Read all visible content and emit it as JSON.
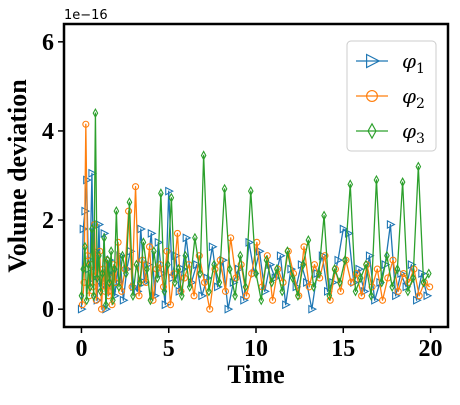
{
  "chart_data": {
    "type": "line",
    "title": "",
    "xlabel": "Time",
    "ylabel": "Volume deviation",
    "xlim": [
      -1,
      21
    ],
    "ylim": [
      -0.4,
      6.4
    ],
    "y_scale_label": "1e−16",
    "y_multiplier": 1e-16,
    "x_ticks": [
      0,
      5,
      10,
      15,
      20
    ],
    "x_tick_labels": [
      "0",
      "5",
      "10",
      "15",
      "20"
    ],
    "y_ticks": [
      0,
      2,
      4,
      6
    ],
    "y_tick_labels": [
      "0",
      "2",
      "4",
      "6"
    ],
    "grid": false,
    "legend_position": "top-right",
    "series": [
      {
        "name": "φ₁",
        "sub_base": "φ",
        "sub_index": "1",
        "color": "#1f77b4",
        "marker": "triangle-right",
        "x": [
          0.0,
          0.1,
          0.2,
          0.3,
          0.4,
          0.5,
          0.6,
          0.7,
          0.8,
          0.9,
          1.0,
          1.1,
          1.2,
          1.3,
          1.4,
          1.5,
          1.6,
          1.7,
          1.8,
          1.9,
          2.0,
          2.2,
          2.4,
          2.6,
          2.8,
          3.0,
          3.2,
          3.4,
          3.6,
          3.8,
          4.0,
          4.2,
          4.4,
          4.6,
          4.8,
          5.0,
          5.2,
          5.4,
          5.6,
          5.8,
          6.0,
          6.3,
          6.6,
          6.9,
          7.2,
          7.5,
          7.8,
          8.1,
          8.4,
          8.7,
          9.0,
          9.3,
          9.6,
          9.9,
          10.2,
          10.5,
          10.8,
          11.1,
          11.4,
          11.7,
          12.0,
          12.3,
          12.6,
          12.9,
          13.2,
          13.5,
          13.8,
          14.1,
          14.4,
          14.7,
          15.0,
          15.3,
          15.6,
          15.9,
          16.2,
          16.5,
          16.8,
          17.1,
          17.4,
          17.7,
          18.0,
          18.3,
          18.6,
          18.9,
          19.2,
          19.5,
          19.8
        ],
        "values": [
          0.0,
          1.8,
          2.2,
          2.9,
          0.9,
          1.1,
          3.05,
          0.7,
          1.3,
          0.2,
          1.9,
          0.5,
          0.6,
          1.7,
          0.0,
          0.8,
          1.1,
          0.4,
          0.9,
          0.3,
          0.6,
          1.2,
          0.2,
          0.9,
          1.3,
          0.5,
          0.4,
          1.8,
          0.6,
          1.0,
          1.7,
          0.3,
          1.5,
          0.8,
          0.1,
          2.65,
          0.7,
          1.2,
          0.4,
          0.9,
          1.6,
          0.6,
          1.0,
          0.3,
          0.7,
          1.4,
          0.5,
          1.1,
          0.0,
          0.6,
          0.9,
          0.2,
          1.5,
          0.8,
          1.3,
          0.4,
          1.0,
          0.7,
          1.2,
          0.1,
          0.9,
          0.5,
          1.0,
          0.6,
          0.0,
          0.8,
          1.2,
          0.4,
          0.6,
          1.1,
          1.8,
          1.7,
          0.6,
          0.9,
          0.4,
          1.2,
          0.2,
          0.6,
          1.0,
          1.9,
          0.3,
          0.8,
          0.5,
          1.0,
          0.2,
          0.8,
          0.3
        ]
      },
      {
        "name": "φ₂",
        "sub_base": "φ",
        "sub_index": "2",
        "color": "#ff7f0e",
        "marker": "circle",
        "x": [
          0.05,
          0.15,
          0.25,
          0.35,
          0.45,
          0.55,
          0.65,
          0.75,
          0.85,
          0.95,
          1.05,
          1.15,
          1.25,
          1.35,
          1.45,
          1.55,
          1.65,
          1.75,
          1.85,
          1.95,
          2.1,
          2.3,
          2.5,
          2.7,
          2.9,
          3.1,
          3.3,
          3.5,
          3.7,
          3.9,
          4.1,
          4.3,
          4.5,
          4.7,
          4.9,
          5.1,
          5.3,
          5.5,
          5.7,
          5.9,
          6.15,
          6.45,
          6.75,
          7.05,
          7.35,
          7.65,
          7.95,
          8.25,
          8.55,
          8.85,
          9.15,
          9.45,
          9.75,
          10.05,
          10.35,
          10.65,
          10.95,
          11.25,
          11.55,
          11.85,
          12.15,
          12.45,
          12.75,
          13.05,
          13.35,
          13.65,
          13.95,
          14.25,
          14.55,
          14.85,
          15.15,
          15.45,
          15.75,
          16.05,
          16.35,
          16.65,
          16.95,
          17.25,
          17.55,
          17.85,
          18.15,
          18.45,
          18.75,
          19.05,
          19.35,
          19.65,
          19.95
        ],
        "values": [
          0.1,
          0.6,
          4.15,
          1.2,
          0.3,
          1.0,
          0.5,
          1.9,
          0.2,
          0.8,
          1.3,
          0.0,
          0.9,
          0.4,
          1.1,
          0.3,
          0.7,
          0.1,
          1.0,
          0.6,
          1.5,
          0.4,
          0.9,
          2.2,
          0.5,
          2.75,
          0.3,
          1.1,
          0.6,
          1.4,
          0.2,
          0.9,
          1.0,
          0.5,
          1.3,
          0.1,
          0.8,
          1.7,
          0.4,
          0.7,
          1.0,
          0.3,
          1.2,
          0.6,
          0.0,
          0.9,
          1.1,
          0.4,
          1.6,
          0.7,
          1.0,
          0.3,
          0.8,
          1.5,
          0.5,
          1.2,
          0.2,
          0.9,
          0.6,
          1.3,
          0.8,
          0.3,
          1.4,
          0.5,
          1.0,
          0.7,
          1.2,
          0.2,
          0.9,
          0.4,
          1.1,
          0.6,
          0.8,
          0.3,
          1.0,
          0.5,
          0.9,
          0.2,
          0.7,
          1.1,
          0.4,
          0.8,
          0.6,
          0.9,
          0.3,
          0.6,
          0.5
        ]
      },
      {
        "name": "φ₃",
        "sub_base": "φ",
        "sub_index": "3",
        "color": "#2ca02c",
        "marker": "thin-diamond",
        "x": [
          0.0,
          0.1,
          0.2,
          0.3,
          0.4,
          0.5,
          0.6,
          0.7,
          0.8,
          0.9,
          1.0,
          1.1,
          1.2,
          1.3,
          1.4,
          1.5,
          1.6,
          1.7,
          1.8,
          1.9,
          2.0,
          2.15,
          2.35,
          2.55,
          2.75,
          2.95,
          3.15,
          3.35,
          3.55,
          3.75,
          3.95,
          4.15,
          4.35,
          4.55,
          4.75,
          4.95,
          5.15,
          5.35,
          5.55,
          5.75,
          5.95,
          6.2,
          6.5,
          6.8,
          7.0,
          7.3,
          7.6,
          7.9,
          8.2,
          8.5,
          8.8,
          9.1,
          9.4,
          9.7,
          10.0,
          10.3,
          10.6,
          10.9,
          11.2,
          11.5,
          11.8,
          12.1,
          12.4,
          12.7,
          13.0,
          13.3,
          13.6,
          13.9,
          14.2,
          14.5,
          14.8,
          15.1,
          15.4,
          15.7,
          16.0,
          16.3,
          16.6,
          16.9,
          17.2,
          17.5,
          17.8,
          18.1,
          18.4,
          18.7,
          19.0,
          19.3,
          19.6,
          19.9
        ],
        "values": [
          0.3,
          0.9,
          1.4,
          0.2,
          1.0,
          0.5,
          1.8,
          0.3,
          4.4,
          0.7,
          1.2,
          0.4,
          0.8,
          1.6,
          0.1,
          1.1,
          0.6,
          1.3,
          0.2,
          0.9,
          2.2,
          0.5,
          1.2,
          0.8,
          2.4,
          0.3,
          1.0,
          0.6,
          1.5,
          0.9,
          0.2,
          1.3,
          0.7,
          2.6,
          0.4,
          1.0,
          2.5,
          0.6,
          0.9,
          0.3,
          1.2,
          0.5,
          1.6,
          0.8,
          3.45,
          0.4,
          1.0,
          0.6,
          2.7,
          0.9,
          0.3,
          1.2,
          0.5,
          2.65,
          0.8,
          0.2,
          1.1,
          0.6,
          0.9,
          0.4,
          1.3,
          0.7,
          0.3,
          1.0,
          1.55,
          0.5,
          0.8,
          2.1,
          0.3,
          0.9,
          0.6,
          1.1,
          2.8,
          0.4,
          0.7,
          1.0,
          0.3,
          2.9,
          0.6,
          1.2,
          0.5,
          0.9,
          2.85,
          0.4,
          0.7,
          3.2,
          0.6,
          0.8
        ]
      }
    ]
  }
}
